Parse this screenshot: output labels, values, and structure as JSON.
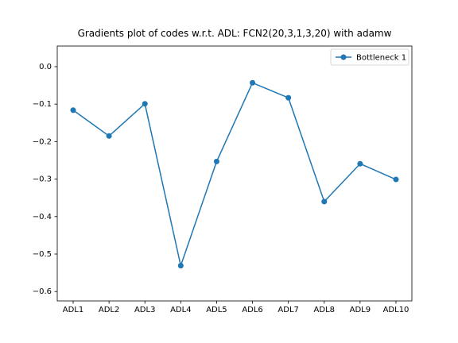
{
  "chart_data": {
    "type": "line",
    "title": "Gradients plot of codes w.r.t. ADL: FCN2(20,3,1,3,20) with adamw",
    "xlabel": "",
    "ylabel": "",
    "categories": [
      "ADL1",
      "ADL2",
      "ADL3",
      "ADL4",
      "ADL5",
      "ADL6",
      "ADL7",
      "ADL8",
      "ADL9",
      "ADL10"
    ],
    "series": [
      {
        "name": "Bottleneck 1",
        "color": "#1f77b4",
        "marker": "circle",
        "values": [
          -0.116,
          -0.185,
          -0.099,
          -0.531,
          -0.253,
          -0.043,
          -0.083,
          -0.36,
          -0.259,
          -0.301
        ]
      }
    ],
    "ylim": [
      -0.625,
      0.055
    ],
    "yticks": [
      0.0,
      -0.1,
      -0.2,
      -0.3,
      -0.4,
      -0.5,
      -0.6
    ],
    "ytick_labels": [
      "0.0",
      "−0.1",
      "−0.2",
      "−0.3",
      "−0.4",
      "−0.5",
      "−0.6"
    ],
    "grid": false,
    "legend_position": "top-right"
  }
}
